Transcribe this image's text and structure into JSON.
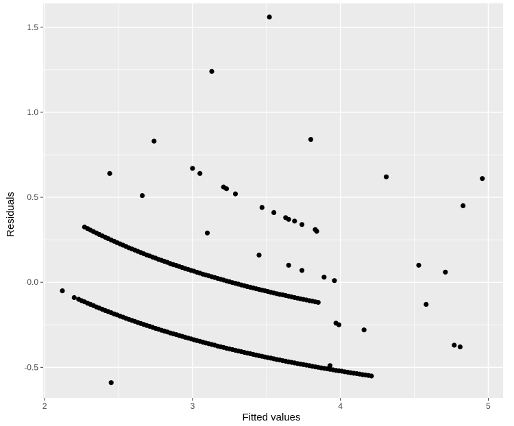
{
  "chart_data": {
    "type": "scatter",
    "title": "",
    "xlabel": "Fitted values",
    "ylabel": "Residuals",
    "xlim": [
      1.99,
      5.1
    ],
    "ylim": [
      -0.68,
      1.64
    ],
    "x_ticks": [
      2,
      3,
      4,
      5
    ],
    "y_ticks": [
      -0.5,
      0.0,
      0.5,
      1.0,
      1.5
    ],
    "x_tick_labels": [
      "2",
      "3",
      "4",
      "5"
    ],
    "y_tick_labels": [
      "-0.5",
      "0.0",
      "0.5",
      "1.0",
      "1.5"
    ],
    "grid": true,
    "background": "#ebebeb",
    "grid_color": "#ffffff",
    "point_color": "#000000",
    "points": [
      [
        2.12,
        -0.05
      ],
      [
        2.2,
        -0.09
      ],
      [
        2.44,
        0.64
      ],
      [
        2.45,
        -0.59
      ],
      [
        2.66,
        0.51
      ],
      [
        2.74,
        0.83
      ],
      [
        3.0,
        0.67
      ],
      [
        3.05,
        0.64
      ],
      [
        3.1,
        0.29
      ],
      [
        3.13,
        1.24
      ],
      [
        3.21,
        0.56
      ],
      [
        3.23,
        0.55
      ],
      [
        3.29,
        0.52
      ],
      [
        3.45,
        0.16
      ],
      [
        3.47,
        0.44
      ],
      [
        3.52,
        1.56
      ],
      [
        3.55,
        0.41
      ],
      [
        3.63,
        0.38
      ],
      [
        3.65,
        0.37
      ],
      [
        3.65,
        0.1
      ],
      [
        3.69,
        0.36
      ],
      [
        3.74,
        0.34
      ],
      [
        3.74,
        0.07
      ],
      [
        3.8,
        0.84
      ],
      [
        3.83,
        0.31
      ],
      [
        3.84,
        0.3
      ],
      [
        3.89,
        0.03
      ],
      [
        3.93,
        -0.49
      ],
      [
        3.96,
        0.01
      ],
      [
        3.97,
        -0.24
      ],
      [
        3.99,
        -0.25
      ],
      [
        4.16,
        -0.28
      ],
      [
        4.31,
        0.62
      ],
      [
        4.53,
        0.1
      ],
      [
        4.58,
        -0.13
      ],
      [
        4.71,
        0.06
      ],
      [
        4.77,
        -0.37
      ],
      [
        4.81,
        -0.38
      ],
      [
        4.83,
        0.45
      ],
      [
        4.96,
        0.61
      ],
      [
        2.27,
        0.325
      ],
      [
        2.29,
        0.316
      ],
      [
        2.31,
        0.307
      ],
      [
        2.33,
        0.298
      ],
      [
        2.35,
        0.29
      ],
      [
        2.37,
        0.281
      ],
      [
        2.39,
        0.273
      ],
      [
        2.41,
        0.265
      ],
      [
        2.43,
        0.257
      ],
      [
        2.45,
        0.249
      ],
      [
        2.47,
        0.241
      ],
      [
        2.49,
        0.233
      ],
      [
        2.51,
        0.226
      ],
      [
        2.53,
        0.218
      ],
      [
        2.55,
        0.211
      ],
      [
        2.57,
        0.203
      ],
      [
        2.59,
        0.196
      ],
      [
        2.61,
        0.189
      ],
      [
        2.63,
        0.182
      ],
      [
        2.65,
        0.175
      ],
      [
        2.67,
        0.168
      ],
      [
        2.69,
        0.161
      ],
      [
        2.71,
        0.155
      ],
      [
        2.73,
        0.148
      ],
      [
        2.75,
        0.142
      ],
      [
        2.77,
        0.135
      ],
      [
        2.79,
        0.129
      ],
      [
        2.81,
        0.123
      ],
      [
        2.83,
        0.117
      ],
      [
        2.85,
        0.11
      ],
      [
        2.87,
        0.104
      ],
      [
        2.89,
        0.099
      ],
      [
        2.91,
        0.093
      ],
      [
        2.93,
        0.087
      ],
      [
        2.95,
        0.081
      ],
      [
        2.97,
        0.076
      ],
      [
        2.99,
        0.07
      ],
      [
        3.01,
        0.065
      ],
      [
        3.03,
        0.059
      ],
      [
        3.05,
        0.054
      ],
      [
        3.07,
        0.048
      ],
      [
        3.09,
        0.043
      ],
      [
        3.11,
        0.038
      ],
      [
        3.13,
        0.033
      ],
      [
        3.15,
        0.028
      ],
      [
        3.17,
        0.023
      ],
      [
        3.19,
        0.018
      ],
      [
        3.21,
        0.013
      ],
      [
        3.23,
        0.008
      ],
      [
        3.25,
        0.003
      ],
      [
        3.27,
        -0.002
      ],
      [
        3.29,
        -0.006
      ],
      [
        3.31,
        -0.011
      ],
      [
        3.33,
        -0.016
      ],
      [
        3.35,
        -0.02
      ],
      [
        3.37,
        -0.025
      ],
      [
        3.39,
        -0.029
      ],
      [
        3.41,
        -0.033
      ],
      [
        3.43,
        -0.038
      ],
      [
        3.45,
        -0.042
      ],
      [
        3.47,
        -0.046
      ],
      [
        3.49,
        -0.05
      ],
      [
        3.51,
        -0.054
      ],
      [
        3.53,
        -0.059
      ],
      [
        3.55,
        -0.063
      ],
      [
        3.57,
        -0.067
      ],
      [
        3.59,
        -0.071
      ],
      [
        3.61,
        -0.074
      ],
      [
        3.63,
        -0.078
      ],
      [
        3.65,
        -0.082
      ],
      [
        3.67,
        -0.086
      ],
      [
        3.69,
        -0.09
      ],
      [
        3.71,
        -0.093
      ],
      [
        3.73,
        -0.097
      ],
      [
        3.75,
        -0.101
      ],
      [
        3.77,
        -0.104
      ],
      [
        3.79,
        -0.108
      ],
      [
        3.81,
        -0.111
      ],
      [
        3.83,
        -0.115
      ],
      [
        3.85,
        -0.118
      ],
      [
        2.23,
        -0.1
      ],
      [
        2.25,
        -0.108
      ],
      [
        2.27,
        -0.115
      ],
      [
        2.29,
        -0.123
      ],
      [
        2.31,
        -0.13
      ],
      [
        2.33,
        -0.137
      ],
      [
        2.35,
        -0.145
      ],
      [
        2.37,
        -0.152
      ],
      [
        2.39,
        -0.159
      ],
      [
        2.41,
        -0.166
      ],
      [
        2.43,
        -0.172
      ],
      [
        2.45,
        -0.179
      ],
      [
        2.47,
        -0.186
      ],
      [
        2.49,
        -0.192
      ],
      [
        2.51,
        -0.199
      ],
      [
        2.53,
        -0.205
      ],
      [
        2.55,
        -0.212
      ],
      [
        2.57,
        -0.218
      ],
      [
        2.59,
        -0.224
      ],
      [
        2.61,
        -0.23
      ],
      [
        2.63,
        -0.236
      ],
      [
        2.65,
        -0.242
      ],
      [
        2.67,
        -0.248
      ],
      [
        2.69,
        -0.254
      ],
      [
        2.71,
        -0.259
      ],
      [
        2.73,
        -0.265
      ],
      [
        2.75,
        -0.271
      ],
      [
        2.77,
        -0.276
      ],
      [
        2.79,
        -0.282
      ],
      [
        2.81,
        -0.287
      ],
      [
        2.83,
        -0.292
      ],
      [
        2.85,
        -0.298
      ],
      [
        2.87,
        -0.303
      ],
      [
        2.89,
        -0.308
      ],
      [
        2.91,
        -0.313
      ],
      [
        2.93,
        -0.318
      ],
      [
        2.95,
        -0.323
      ],
      [
        2.97,
        -0.328
      ],
      [
        2.99,
        -0.333
      ],
      [
        3.01,
        -0.338
      ],
      [
        3.03,
        -0.343
      ],
      [
        3.05,
        -0.347
      ],
      [
        3.07,
        -0.352
      ],
      [
        3.09,
        -0.357
      ],
      [
        3.11,
        -0.361
      ],
      [
        3.13,
        -0.366
      ],
      [
        3.15,
        -0.37
      ],
      [
        3.17,
        -0.375
      ],
      [
        3.19,
        -0.379
      ],
      [
        3.21,
        -0.383
      ],
      [
        3.23,
        -0.388
      ],
      [
        3.25,
        -0.392
      ],
      [
        3.27,
        -0.396
      ],
      [
        3.29,
        -0.4
      ],
      [
        3.31,
        -0.404
      ],
      [
        3.33,
        -0.408
      ],
      [
        3.35,
        -0.412
      ],
      [
        3.37,
        -0.416
      ],
      [
        3.39,
        -0.42
      ],
      [
        3.41,
        -0.424
      ],
      [
        3.43,
        -0.428
      ],
      [
        3.45,
        -0.432
      ],
      [
        3.47,
        -0.435
      ],
      [
        3.49,
        -0.439
      ],
      [
        3.51,
        -0.443
      ],
      [
        3.53,
        -0.446
      ],
      [
        3.55,
        -0.45
      ],
      [
        3.57,
        -0.454
      ],
      [
        3.59,
        -0.457
      ],
      [
        3.61,
        -0.461
      ],
      [
        3.63,
        -0.464
      ],
      [
        3.65,
        -0.468
      ],
      [
        3.67,
        -0.471
      ],
      [
        3.69,
        -0.474
      ],
      [
        3.71,
        -0.478
      ],
      [
        3.73,
        -0.481
      ],
      [
        3.75,
        -0.484
      ],
      [
        3.77,
        -0.487
      ],
      [
        3.79,
        -0.49
      ],
      [
        3.81,
        -0.494
      ],
      [
        3.83,
        -0.497
      ],
      [
        3.85,
        -0.5
      ],
      [
        3.87,
        -0.503
      ],
      [
        3.89,
        -0.506
      ],
      [
        3.91,
        -0.509
      ],
      [
        3.93,
        -0.512
      ],
      [
        3.95,
        -0.515
      ],
      [
        3.97,
        -0.518
      ],
      [
        3.99,
        -0.521
      ],
      [
        4.01,
        -0.523
      ],
      [
        4.03,
        -0.526
      ],
      [
        4.05,
        -0.529
      ],
      [
        4.07,
        -0.532
      ],
      [
        4.09,
        -0.535
      ],
      [
        4.11,
        -0.537
      ],
      [
        4.13,
        -0.54
      ],
      [
        4.15,
        -0.543
      ],
      [
        4.17,
        -0.545
      ],
      [
        4.19,
        -0.548
      ],
      [
        4.21,
        -0.551
      ]
    ]
  }
}
